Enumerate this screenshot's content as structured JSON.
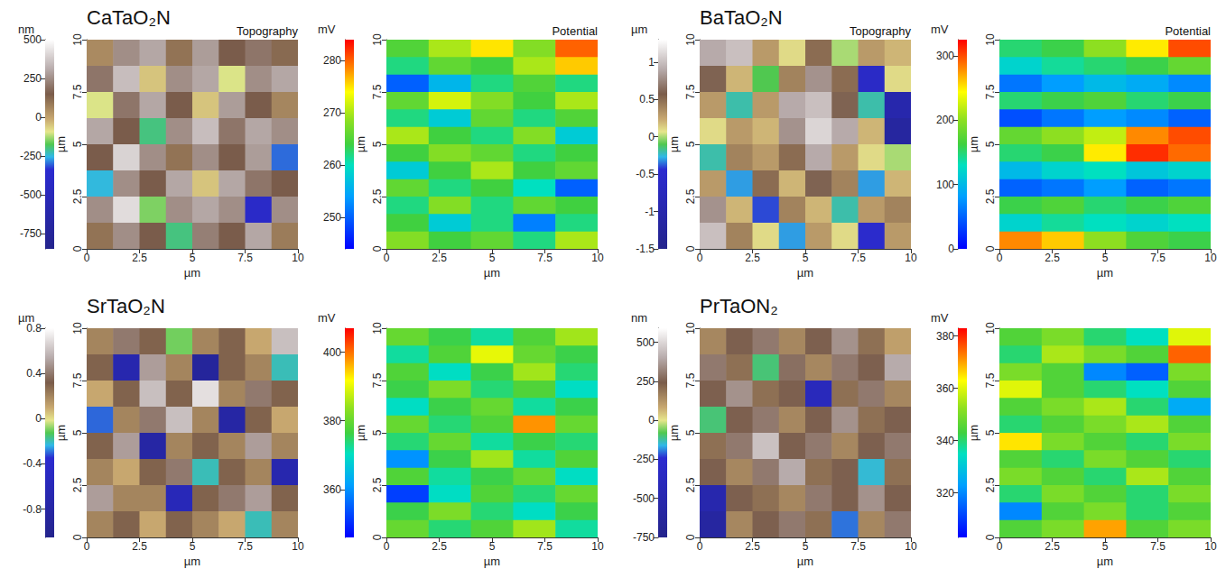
{
  "chart_data": [
    {
      "type": "heatmap",
      "title": "CaTaO₂N",
      "annotations": [
        "Topography"
      ],
      "xlabel": "µm",
      "ylabel": "µm",
      "xlim": [
        0,
        10
      ],
      "ylim": [
        0,
        10
      ],
      "xticks": [
        0,
        2.5,
        5,
        7.5,
        10
      ],
      "yticks": [
        0,
        2.5,
        5,
        7.5,
        10
      ],
      "colorbar": {
        "label": "nm",
        "range": [
          -850,
          500
        ],
        "ticks": [
          -750,
          -500,
          -250,
          0,
          250,
          500
        ]
      },
      "cells": [
        [
          50,
          250,
          300,
          100,
          280,
          150,
          200,
          120
        ],
        [
          200,
          350,
          -50,
          250,
          300,
          -100,
          250,
          300
        ],
        [
          -100,
          200,
          300,
          150,
          -50,
          280,
          150,
          60
        ],
        [
          300,
          150,
          -200,
          250,
          350,
          200,
          300,
          250
        ],
        [
          150,
          400,
          250,
          100,
          250,
          150,
          280,
          -300
        ],
        [
          -250,
          250,
          150,
          300,
          -50,
          300,
          200,
          150
        ],
        [
          250,
          420,
          -150,
          250,
          300,
          250,
          -400,
          250
        ],
        [
          100,
          250,
          150,
          -200,
          220,
          150,
          300,
          80
        ]
      ]
    },
    {
      "type": "heatmap",
      "annotations": [
        "Potential"
      ],
      "xlabel": "µm",
      "ylabel": "µm",
      "xlim": [
        0,
        10
      ],
      "ylim": [
        0,
        10
      ],
      "xticks": [
        0,
        2.5,
        5,
        7.5,
        10
      ],
      "yticks": [
        0,
        2.5,
        5,
        7.5,
        10
      ],
      "colorbar": {
        "label": "mV",
        "range": [
          244,
          284
        ],
        "ticks": [
          250,
          260,
          270,
          280
        ]
      },
      "cells": [
        [
          265,
          270,
          275,
          268,
          280
        ],
        [
          262,
          266,
          264,
          270,
          276
        ],
        [
          250,
          256,
          262,
          265,
          262
        ],
        [
          266,
          272,
          268,
          264,
          270
        ],
        [
          262,
          258,
          266,
          262,
          265
        ],
        [
          270,
          264,
          262,
          268,
          258
        ],
        [
          264,
          268,
          266,
          262,
          264
        ],
        [
          258,
          264,
          270,
          264,
          266
        ],
        [
          266,
          262,
          264,
          260,
          250
        ],
        [
          262,
          268,
          262,
          266,
          264
        ],
        [
          264,
          258,
          262,
          252,
          262
        ],
        [
          268,
          264,
          266,
          262,
          270
        ]
      ]
    },
    {
      "type": "heatmap",
      "title": "BaTaO₂N",
      "annotations": [
        "Topography"
      ],
      "xlabel": "µm",
      "ylabel": "µm",
      "xlim": [
        0,
        10
      ],
      "ylim": [
        0,
        10
      ],
      "xticks": [
        0,
        2.5,
        5,
        7.5,
        10
      ],
      "yticks": [
        0,
        2.5,
        5,
        7.5,
        10
      ],
      "colorbar": {
        "label": "µm",
        "range": [
          -1.5,
          1.3
        ],
        "ticks": [
          -1.5,
          -1,
          -0.5,
          0,
          0.5,
          1
        ]
      },
      "cells": [
        [
          0.9,
          1.0,
          0.3,
          0.1,
          0.5,
          0.0,
          0.3,
          0.2
        ],
        [
          0.6,
          0.2,
          -0.1,
          0.4,
          0.8,
          0.5,
          -0.6,
          0.1
        ],
        [
          0.3,
          -0.2,
          0.3,
          0.9,
          1.0,
          0.6,
          -0.2,
          -1.0
        ],
        [
          0.1,
          0.3,
          0.2,
          0.8,
          1.1,
          0.9,
          0.2,
          -1.2
        ],
        [
          -0.2,
          0.4,
          0.3,
          0.5,
          0.9,
          0.3,
          0.1,
          0.0
        ],
        [
          0.3,
          -0.3,
          0.5,
          0.2,
          0.6,
          0.4,
          -0.3,
          0.2
        ],
        [
          0.8,
          0.2,
          -0.4,
          0.4,
          0.2,
          -0.2,
          0.3,
          0.4
        ],
        [
          1.0,
          0.4,
          0.1,
          -0.3,
          0.3,
          0.1,
          -0.5,
          0.3
        ]
      ]
    },
    {
      "type": "heatmap",
      "annotations": [
        "Potential"
      ],
      "xlabel": "µm",
      "ylabel": "µm",
      "xlim": [
        0,
        10
      ],
      "ylim": [
        0,
        10
      ],
      "xticks": [
        0,
        2.5,
        5,
        7.5,
        10
      ],
      "yticks": [
        0,
        2.5,
        5,
        7.5,
        10
      ],
      "colorbar": {
        "label": "mV",
        "range": [
          0,
          325
        ],
        "ticks": [
          0,
          100,
          200,
          300
        ]
      },
      "cells": [
        [
          150,
          160,
          200,
          250,
          300
        ],
        [
          120,
          140,
          150,
          160,
          180
        ],
        [
          60,
          80,
          100,
          90,
          70
        ],
        [
          150,
          160,
          170,
          150,
          160
        ],
        [
          40,
          60,
          80,
          70,
          50
        ],
        [
          180,
          200,
          220,
          280,
          300
        ],
        [
          150,
          160,
          250,
          310,
          290
        ],
        [
          100,
          120,
          130,
          110,
          120
        ],
        [
          50,
          60,
          80,
          50,
          60
        ],
        [
          160,
          170,
          150,
          160,
          170
        ],
        [
          120,
          140,
          130,
          120,
          130
        ],
        [
          280,
          260,
          200,
          170,
          160
        ]
      ]
    },
    {
      "type": "heatmap",
      "title": "SrTaO₂N",
      "xlabel": "µm",
      "ylabel": "µm",
      "xlim": [
        0,
        10
      ],
      "ylim": [
        0,
        10
      ],
      "xticks": [
        0,
        2.5,
        5,
        7.5,
        10
      ],
      "yticks": [
        0,
        2.5,
        5,
        7.5,
        10
      ],
      "colorbar": {
        "label": "µm",
        "range": [
          -1.05,
          0.8
        ],
        "ticks": [
          -0.8,
          -0.4,
          0,
          0.4,
          0.8
        ]
      },
      "cells": [
        [
          0.2,
          0.4,
          0.3,
          -0.1,
          0.2,
          0.3,
          0.1,
          0.6
        ],
        [
          0.3,
          -0.7,
          0.5,
          0.2,
          -0.9,
          0.3,
          0.2,
          -0.2
        ],
        [
          0.1,
          0.3,
          0.6,
          0.3,
          0.7,
          0.2,
          0.4,
          0.3
        ],
        [
          -0.3,
          0.2,
          0.4,
          0.6,
          0.2,
          -0.8,
          0.3,
          0.1
        ],
        [
          0.3,
          0.5,
          -0.8,
          0.2,
          0.3,
          0.2,
          0.5,
          0.2
        ],
        [
          0.2,
          0.1,
          0.3,
          0.4,
          -0.2,
          0.3,
          0.2,
          -0.7
        ],
        [
          0.5,
          0.2,
          0.2,
          -0.6,
          0.3,
          0.4,
          0.5,
          0.3
        ],
        [
          0.2,
          0.3,
          0.1,
          0.3,
          0.2,
          0.1,
          -0.2,
          0.2
        ]
      ]
    },
    {
      "type": "heatmap",
      "xlabel": "µm",
      "ylabel": "µm",
      "xlim": [
        0,
        10
      ],
      "ylim": [
        0,
        10
      ],
      "xticks": [
        0,
        2.5,
        5,
        7.5,
        10
      ],
      "yticks": [
        0,
        2.5,
        5,
        7.5,
        10
      ],
      "colorbar": {
        "label": "mV",
        "range": [
          346,
          407
        ],
        "ticks": [
          360,
          380,
          400
        ]
      },
      "cells": [
        [
          380,
          376,
          372,
          378,
          385
        ],
        [
          372,
          378,
          390,
          380,
          376
        ],
        [
          378,
          370,
          376,
          385,
          374
        ],
        [
          376,
          382,
          374,
          378,
          370
        ],
        [
          370,
          376,
          380,
          372,
          376
        ],
        [
          380,
          374,
          378,
          398,
          380
        ],
        [
          374,
          380,
          372,
          376,
          374
        ],
        [
          360,
          376,
          385,
          372,
          378
        ],
        [
          378,
          372,
          376,
          380,
          370
        ],
        [
          352,
          370,
          378,
          374,
          380
        ],
        [
          376,
          382,
          374,
          370,
          376
        ],
        [
          380,
          374,
          378,
          385,
          372
        ]
      ]
    },
    {
      "type": "heatmap",
      "title": "PrTaON₂",
      "xlabel": "µm",
      "ylabel": "µm",
      "xlim": [
        0,
        10
      ],
      "ylim": [
        0,
        10
      ],
      "xticks": [
        0,
        2.5,
        5,
        7.5,
        10
      ],
      "yticks": [
        0,
        2.5,
        5,
        7.5,
        10
      ],
      "colorbar": {
        "label": "nm",
        "range": [
          -750,
          590
        ],
        "ticks": [
          -750,
          -500,
          -250,
          0,
          250,
          500
        ]
      },
      "cells": [
        [
          150,
          250,
          300,
          150,
          250,
          350,
          200,
          100
        ],
        [
          300,
          200,
          -100,
          280,
          150,
          300,
          250,
          400
        ],
        [
          250,
          350,
          200,
          250,
          -400,
          200,
          300,
          150
        ],
        [
          -100,
          250,
          300,
          150,
          250,
          350,
          200,
          250
        ],
        [
          200,
          300,
          450,
          250,
          300,
          150,
          250,
          300
        ],
        [
          250,
          150,
          300,
          400,
          200,
          250,
          -150,
          200
        ],
        [
          -500,
          250,
          200,
          150,
          300,
          250,
          350,
          250
        ],
        [
          -600,
          150,
          250,
          300,
          200,
          -200,
          150,
          300
        ]
      ]
    },
    {
      "type": "heatmap",
      "xlabel": "µm",
      "ylabel": "µm",
      "xlim": [
        0,
        10
      ],
      "ylim": [
        0,
        10
      ],
      "xticks": [
        0,
        2.5,
        5,
        7.5,
        10
      ],
      "yticks": [
        0,
        2.5,
        5,
        7.5,
        10
      ],
      "colorbar": {
        "label": "mV",
        "range": [
          303,
          383
        ],
        "ticks": [
          320,
          340,
          360,
          380
        ]
      },
      "cells": [
        [
          345,
          350,
          340,
          335,
          360
        ],
        [
          340,
          355,
          350,
          345,
          375
        ],
        [
          350,
          345,
          320,
          315,
          350
        ],
        [
          360,
          345,
          340,
          335,
          345
        ],
        [
          345,
          350,
          355,
          340,
          325
        ],
        [
          340,
          345,
          350,
          355,
          345
        ],
        [
          365,
          350,
          345,
          340,
          350
        ],
        [
          345,
          340,
          350,
          345,
          340
        ],
        [
          350,
          345,
          340,
          355,
          345
        ],
        [
          340,
          350,
          345,
          340,
          350
        ],
        [
          320,
          345,
          350,
          340,
          345
        ],
        [
          345,
          350,
          370,
          345,
          350
        ]
      ]
    }
  ]
}
